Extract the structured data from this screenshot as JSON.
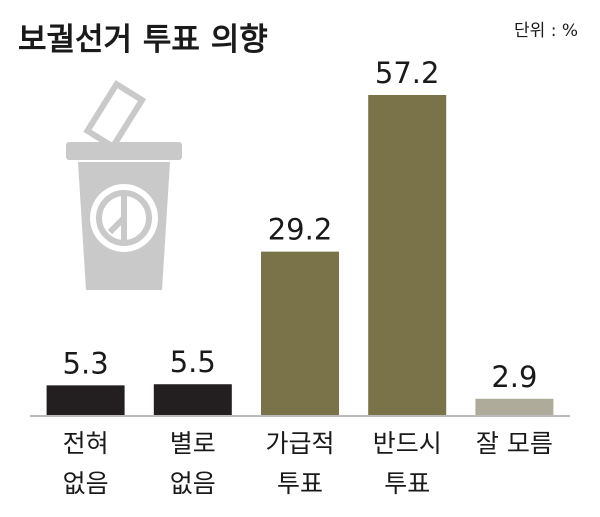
{
  "chart_data": {
    "type": "bar",
    "title": "보궐선거 투표 의향",
    "unit": "단위 : %",
    "categories": [
      [
        "전혀",
        "없음"
      ],
      [
        "별로",
        "없음"
      ],
      [
        "가급적",
        "투표"
      ],
      [
        "반드시",
        "투표"
      ],
      [
        "잘 모름"
      ]
    ],
    "values": [
      5.3,
      5.5,
      29.2,
      57.2,
      2.9
    ],
    "colors": [
      "#231f20",
      "#231f20",
      "#7a7249",
      "#7a7249",
      "#aeab9b"
    ]
  }
}
